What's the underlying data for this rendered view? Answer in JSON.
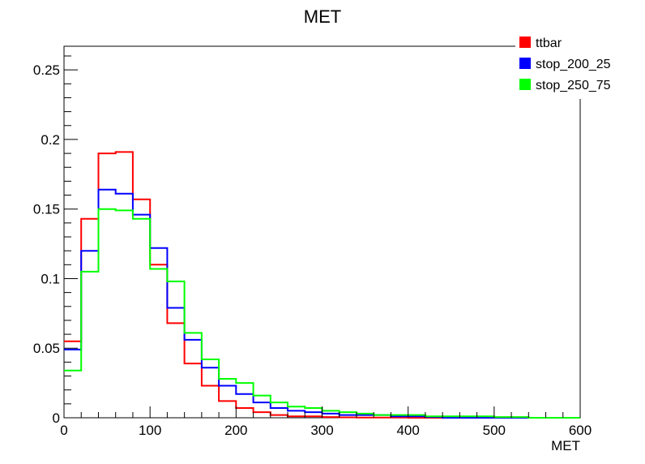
{
  "chart_data": {
    "type": "line",
    "title": "MET",
    "xlabel": "MET",
    "ylabel": "",
    "xlim": [
      0,
      600
    ],
    "ylim": [
      0,
      0.267
    ],
    "grid": false,
    "legend_position": "top-right",
    "x_ticks": [
      "0",
      "100",
      "200",
      "300",
      "400",
      "500",
      "600"
    ],
    "y_ticks": [
      "0",
      "0.05",
      "0.1",
      "0.15",
      "0.2",
      "0.25"
    ],
    "bin_edges": [
      0,
      20,
      40,
      60,
      80,
      100,
      120,
      140,
      160,
      180,
      200,
      220,
      240,
      260,
      280,
      300,
      320,
      340,
      360,
      380,
      400,
      420,
      440,
      460,
      480,
      500,
      520,
      540,
      560,
      580,
      600
    ],
    "series": [
      {
        "name": "ttbar",
        "color": "#ff0000",
        "values": [
          0.055,
          0.143,
          0.19,
          0.191,
          0.157,
          0.11,
          0.068,
          0.039,
          0.023,
          0.012,
          0.007,
          0.004,
          0.002,
          0.001,
          0.001,
          0.0005,
          0.0003,
          0.0002,
          0.0001,
          0.0001,
          0,
          0,
          0,
          0,
          0,
          0,
          0,
          0,
          0,
          0
        ]
      },
      {
        "name": "stop_200_25",
        "color": "#0000ff",
        "values": [
          0.049,
          0.12,
          0.164,
          0.161,
          0.146,
          0.122,
          0.079,
          0.056,
          0.036,
          0.023,
          0.017,
          0.011,
          0.007,
          0.005,
          0.004,
          0.003,
          0.002,
          0.002,
          0.002,
          0.001,
          0.001,
          0.0005,
          0,
          0,
          0,
          0,
          0,
          0,
          0,
          0
        ]
      },
      {
        "name": "stop_250_75",
        "color": "#00ff00",
        "values": [
          0.034,
          0.105,
          0.15,
          0.149,
          0.143,
          0.107,
          0.098,
          0.061,
          0.042,
          0.028,
          0.025,
          0.016,
          0.011,
          0.008,
          0.007,
          0.005,
          0.004,
          0.003,
          0.002,
          0.002,
          0.002,
          0.001,
          0.001,
          0.001,
          0.001,
          0.0005,
          0.0005,
          0,
          0,
          0
        ]
      }
    ]
  }
}
